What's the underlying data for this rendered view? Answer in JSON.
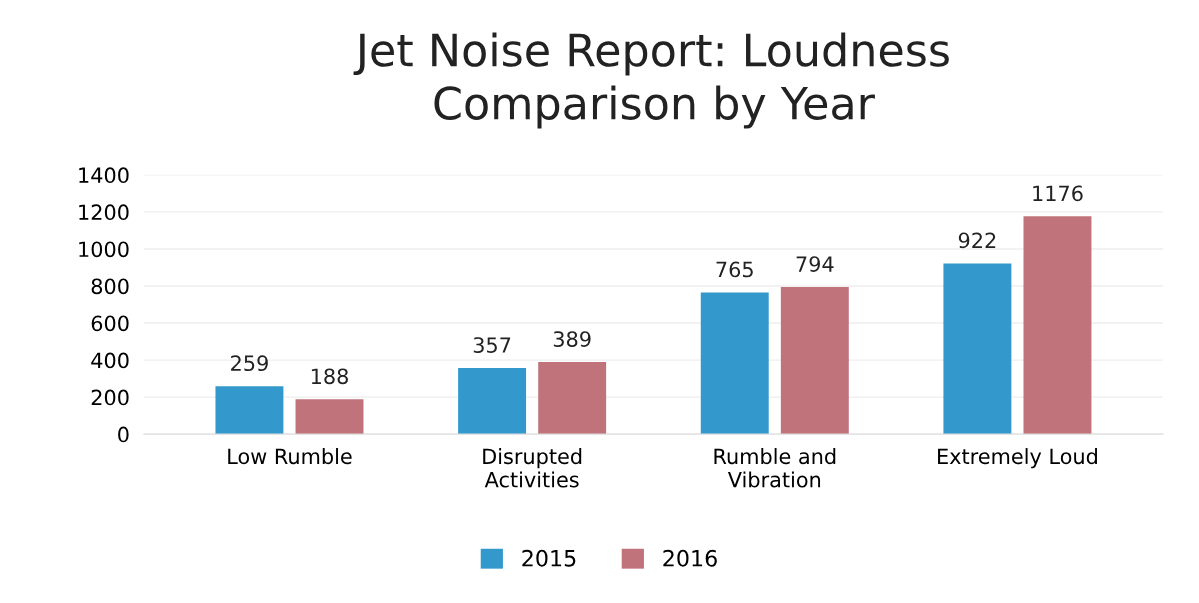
{
  "chart_data": {
    "type": "bar",
    "title": "Jet Noise Report: Loudness\nComparison by Year",
    "categories": [
      "Low Rumble",
      "Disrupted\nActivities",
      "Rumble and\nVibration",
      "Extremely Loud"
    ],
    "series": [
      {
        "name": "2015",
        "color": "#3399cc",
        "values": [
          259,
          357,
          765,
          922
        ]
      },
      {
        "name": "2016",
        "color": "#c0737a",
        "values": [
          188,
          389,
          794,
          1176
        ]
      }
    ],
    "ylim": [
      0,
      1400
    ],
    "yticks": [
      0,
      200,
      400,
      600,
      800,
      1000,
      1200,
      1400
    ],
    "grid": "y",
    "legend": "bottom",
    "data_labels": true
  }
}
